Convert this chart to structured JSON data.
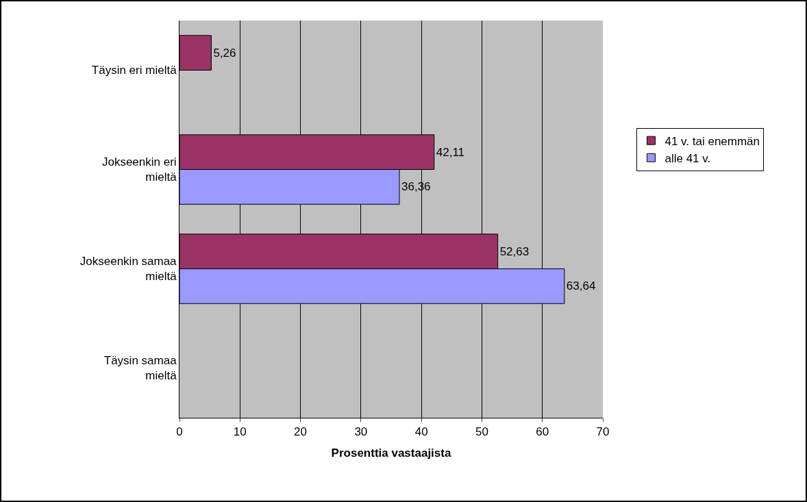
{
  "chart_data": {
    "type": "bar",
    "orientation": "horizontal",
    "xlabel": "Prosenttia vastaajista",
    "categories": [
      "Täysin eri mieltä",
      "Jokseenkin eri mieltä",
      "Jokseenkin samaa mieltä",
      "Täysin samaa mieltä"
    ],
    "series": [
      {
        "name": "41 v. tai enemmän",
        "color": "#993366",
        "values": [
          5.26,
          42.11,
          52.63,
          null
        ],
        "value_labels": [
          "5,26",
          "42,11",
          "52,63",
          null
        ]
      },
      {
        "name": "alle 41 v.",
        "color": "#9999ff",
        "values": [
          null,
          36.36,
          63.64,
          null
        ],
        "value_labels": [
          null,
          "36,36",
          "63,64",
          null
        ]
      }
    ],
    "xlim": [
      0,
      70
    ],
    "xticks": [
      0,
      10,
      20,
      30,
      40,
      50,
      60,
      70
    ],
    "grid": "x",
    "legend": "right"
  }
}
